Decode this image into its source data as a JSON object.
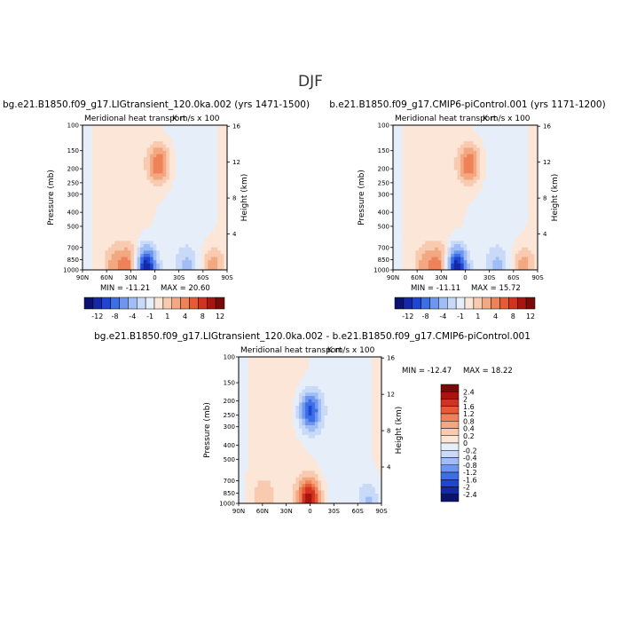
{
  "page_title": "DJF",
  "chart_data": [
    {
      "type": "heatmap",
      "title": "bg.e21.B1850.f09_g17.LIGtransient_120.0ka.002 (yrs 1471-1500)",
      "subtitle": "Meridional heat transport",
      "units": "K m/s x 100",
      "xlabel": "",
      "ylabel": "Pressure (mb)",
      "ylabel_right": "Height (km)",
      "x_ticks": [
        "90N",
        "60N",
        "30N",
        "0",
        "30S",
        "60S",
        "90S"
      ],
      "y_ticks": [
        100,
        150,
        200,
        250,
        300,
        400,
        500,
        700,
        850,
        1000
      ],
      "y_right_ticks": [
        16,
        12,
        8,
        4
      ],
      "ylim": [
        1000,
        100
      ],
      "y_scale": "log",
      "min_label": "MIN = -11.21",
      "max_label": "MAX =  20.60",
      "min": -11.21,
      "max": 20.6,
      "features": [
        {
          "lat": -5,
          "p": 185,
          "value": 6
        },
        {
          "lat": 12,
          "p": 950,
          "value": -11
        },
        {
          "lat": 30,
          "p": 930,
          "value": 5
        },
        {
          "lat": 50,
          "p": 940,
          "value": 3
        },
        {
          "lat": -40,
          "p": 960,
          "value": -3
        },
        {
          "lat": -72,
          "p": 950,
          "value": 4
        }
      ]
    },
    {
      "type": "heatmap",
      "title": "b.e21.B1850.f09_g17.CMIP6-piControl.001 (yrs 1171-1200)",
      "subtitle": "Meridional heat transport",
      "units": "K m/s x 100",
      "xlabel": "",
      "ylabel": "Pressure (mb)",
      "ylabel_right": "Height (km)",
      "x_ticks": [
        "90N",
        "60N",
        "30N",
        "0",
        "30S",
        "60S",
        "90S"
      ],
      "y_ticks": [
        100,
        150,
        200,
        250,
        300,
        400,
        500,
        700,
        850,
        1000
      ],
      "y_right_ticks": [
        16,
        12,
        8,
        4
      ],
      "ylim": [
        1000,
        100
      ],
      "y_scale": "log",
      "min_label": "MIN = -11.11",
      "max_label": "MAX =  15.72",
      "min": -11.11,
      "max": 15.72,
      "features": [
        {
          "lat": -5,
          "p": 185,
          "value": 6
        },
        {
          "lat": 12,
          "p": 950,
          "value": -11
        },
        {
          "lat": 30,
          "p": 930,
          "value": 5
        },
        {
          "lat": 50,
          "p": 940,
          "value": 3
        },
        {
          "lat": -40,
          "p": 960,
          "value": -3
        },
        {
          "lat": -72,
          "p": 950,
          "value": 4
        }
      ]
    },
    {
      "type": "heatmap",
      "title": "bg.e21.B1850.f09_g17.LIGtransient_120.0ka.002 - b.e21.B1850.f09_g17.CMIP6-piControl.001",
      "subtitle": "Meridional heat transport",
      "units": "K m/s x 100",
      "xlabel": "",
      "ylabel": "Pressure (mb)",
      "ylabel_right": "Height (km)",
      "x_ticks": [
        "90N",
        "60N",
        "30N",
        "0",
        "30S",
        "60S",
        "90S"
      ],
      "y_ticks": [
        100,
        150,
        200,
        250,
        300,
        400,
        500,
        700,
        850,
        1000
      ],
      "y_right_ticks": [
        16,
        12,
        8,
        4
      ],
      "ylim": [
        1000,
        100
      ],
      "y_scale": "log",
      "min_label": "MIN = -12.47",
      "max_label": "MAX =  18.22",
      "min": -12.47,
      "max": 18.22,
      "features": [
        {
          "lat": 0,
          "p": 235,
          "value": -1.6
        },
        {
          "lat": 1,
          "p": 930,
          "value": 2.0
        },
        {
          "lat": 60,
          "p": 900,
          "value": 0.4
        },
        {
          "lat": -75,
          "p": 960,
          "value": -0.6
        }
      ]
    }
  ],
  "colorbar_top": {
    "labels": [
      "-12",
      "-8",
      "-4",
      "-1",
      "1",
      "4",
      "8",
      "12"
    ],
    "colors": [
      "#0a1470",
      "#1428a8",
      "#1e46d2",
      "#3c6ee6",
      "#6e96f0",
      "#a0bef5",
      "#c8daf8",
      "#e6eefa",
      "#fbe6d8",
      "#f8cbb0",
      "#f4a882",
      "#ee8258",
      "#e65a36",
      "#d23220",
      "#aa1410",
      "#780a08"
    ]
  },
  "colorbar_diff": {
    "labels": [
      "2.4",
      "2",
      "1.6",
      "1.2",
      "0.8",
      "0.4",
      "0.2",
      "0",
      "-0.2",
      "-0.4",
      "-0.8",
      "-1.2",
      "-1.6",
      "-2",
      "-2.4"
    ],
    "colors": [
      "#780a08",
      "#aa1410",
      "#d23220",
      "#e65a36",
      "#ee8258",
      "#f4a882",
      "#f8cbb0",
      "#fbe6d8",
      "#e6eefa",
      "#c8daf8",
      "#a0bef5",
      "#6e96f0",
      "#3c6ee6",
      "#1e46d2",
      "#1428a8",
      "#0a1470"
    ]
  }
}
